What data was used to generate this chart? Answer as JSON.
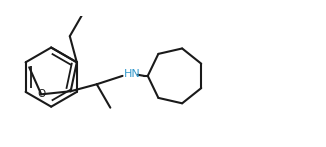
{
  "background_color": "#ffffff",
  "line_color": "#1a1a1a",
  "nh_color": "#3399cc",
  "line_width": 1.5,
  "figsize": [
    3.26,
    1.47
  ],
  "dpi": 100
}
